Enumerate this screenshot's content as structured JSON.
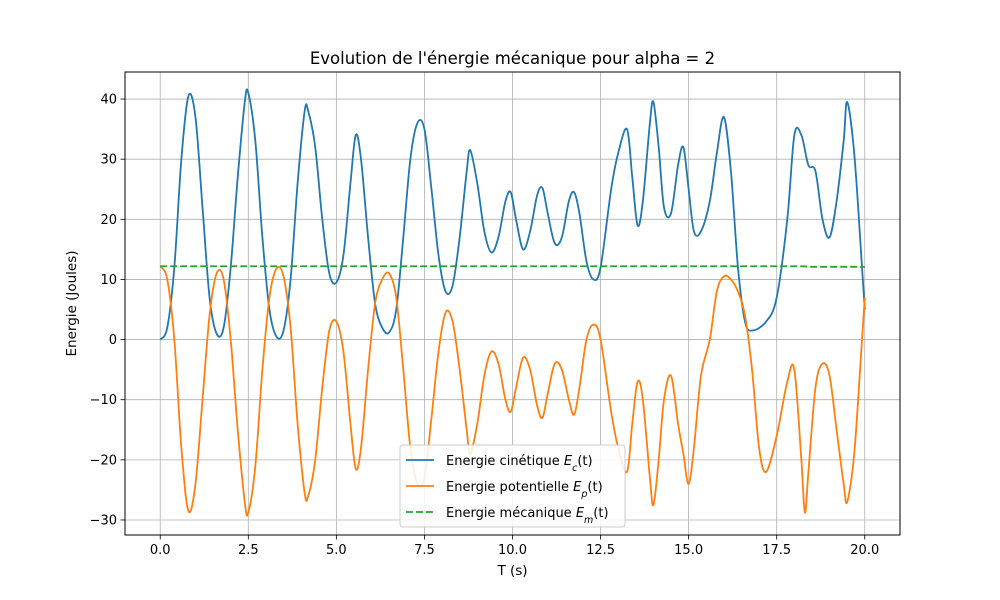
{
  "chart_data": {
    "type": "line",
    "title": "Evolution de l'énergie mécanique pour alpha = 2",
    "xlabel": "T (s)",
    "ylabel": "Energie (Joules)",
    "xlim": [
      -1.0,
      21.0
    ],
    "ylim": [
      -32.5,
      44.5
    ],
    "x_ticks": [
      0.0,
      2.5,
      5.0,
      7.5,
      10.0,
      12.5,
      15.0,
      17.5,
      20.0
    ],
    "x_tick_labels": [
      "0.0",
      "2.5",
      "5.0",
      "7.5",
      "10.0",
      "12.5",
      "15.0",
      "17.5",
      "20.0"
    ],
    "y_ticks": [
      -30,
      -20,
      -10,
      0,
      10,
      20,
      30,
      40
    ],
    "y_tick_labels": [
      "−30",
      "−20",
      "−10",
      "0",
      "10",
      "20",
      "30",
      "40"
    ],
    "grid": true,
    "legend_position": "bottom-center",
    "series": [
      {
        "name": "Energie cinétique",
        "legend_base": "Energie cinétique ",
        "legend_sym": "E",
        "legend_sub": "c",
        "legend_arg": "(t)",
        "color": "#1f77b4",
        "style": "solid",
        "points": [
          [
            0,
            0
          ],
          [
            0.2,
            2
          ],
          [
            0.4,
            12
          ],
          [
            0.6,
            30
          ],
          [
            0.8,
            40.5
          ],
          [
            1.0,
            37
          ],
          [
            1.2,
            22
          ],
          [
            1.4,
            7
          ],
          [
            1.6,
            1
          ],
          [
            1.8,
            2
          ],
          [
            2.0,
            12
          ],
          [
            2.2,
            27
          ],
          [
            2.4,
            39.5
          ],
          [
            2.5,
            41
          ],
          [
            2.7,
            33
          ],
          [
            2.9,
            17
          ],
          [
            3.1,
            5
          ],
          [
            3.3,
            0.5
          ],
          [
            3.5,
            1.5
          ],
          [
            3.7,
            10
          ],
          [
            3.9,
            26
          ],
          [
            4.1,
            38
          ],
          [
            4.2,
            38
          ],
          [
            4.4,
            32
          ],
          [
            4.6,
            20
          ],
          [
            4.8,
            11
          ],
          [
            5.0,
            9.5
          ],
          [
            5.2,
            14
          ],
          [
            5.4,
            26
          ],
          [
            5.55,
            34
          ],
          [
            5.7,
            30
          ],
          [
            5.9,
            17
          ],
          [
            6.1,
            6
          ],
          [
            6.3,
            2
          ],
          [
            6.5,
            1.2
          ],
          [
            6.7,
            5
          ],
          [
            6.9,
            17
          ],
          [
            7.1,
            30
          ],
          [
            7.3,
            36
          ],
          [
            7.5,
            35
          ],
          [
            7.7,
            25
          ],
          [
            7.9,
            14
          ],
          [
            8.1,
            8
          ],
          [
            8.3,
            9
          ],
          [
            8.5,
            17
          ],
          [
            8.7,
            28
          ],
          [
            8.8,
            31.5
          ],
          [
            9.0,
            26
          ],
          [
            9.2,
            18
          ],
          [
            9.4,
            14.5
          ],
          [
            9.6,
            17
          ],
          [
            9.8,
            23
          ],
          [
            9.95,
            24.5
          ],
          [
            10.1,
            20
          ],
          [
            10.3,
            15
          ],
          [
            10.5,
            18
          ],
          [
            10.7,
            24
          ],
          [
            10.85,
            25.2
          ],
          [
            11.0,
            21
          ],
          [
            11.2,
            16
          ],
          [
            11.4,
            17
          ],
          [
            11.6,
            23
          ],
          [
            11.75,
            24.5
          ],
          [
            11.9,
            21
          ],
          [
            12.1,
            13
          ],
          [
            12.3,
            10
          ],
          [
            12.5,
            12
          ],
          [
            12.8,
            25
          ],
          [
            13.0,
            31
          ],
          [
            13.25,
            35
          ],
          [
            13.4,
            27
          ],
          [
            13.55,
            19
          ],
          [
            13.7,
            23
          ],
          [
            13.9,
            36
          ],
          [
            14.0,
            39.5
          ],
          [
            14.15,
            32
          ],
          [
            14.3,
            22
          ],
          [
            14.5,
            21
          ],
          [
            14.7,
            29
          ],
          [
            14.85,
            32
          ],
          [
            15.0,
            25
          ],
          [
            15.15,
            18
          ],
          [
            15.35,
            18
          ],
          [
            15.6,
            23
          ],
          [
            15.8,
            31
          ],
          [
            16.0,
            37
          ],
          [
            16.2,
            28
          ],
          [
            16.4,
            12
          ],
          [
            16.6,
            3
          ],
          [
            16.8,
            1.5
          ],
          [
            17.2,
            3
          ],
          [
            17.5,
            7
          ],
          [
            17.8,
            20
          ],
          [
            18.0,
            34
          ],
          [
            18.2,
            34
          ],
          [
            18.4,
            29
          ],
          [
            18.6,
            28
          ],
          [
            18.8,
            20
          ],
          [
            19.0,
            17
          ],
          [
            19.2,
            23
          ],
          [
            19.4,
            33
          ],
          [
            19.5,
            39.5
          ],
          [
            19.7,
            31
          ],
          [
            19.9,
            14
          ],
          [
            20.0,
            5
          ]
        ]
      },
      {
        "name": "Energie potentielle",
        "legend_base": "Energie potentielle ",
        "legend_sym": "E",
        "legend_sub": "p",
        "legend_arg": "(t)",
        "color": "#ff7f0e",
        "style": "solid",
        "points": [
          [
            0,
            12.2
          ],
          [
            0.2,
            10
          ],
          [
            0.4,
            0
          ],
          [
            0.6,
            -18
          ],
          [
            0.8,
            -28.5
          ],
          [
            1.0,
            -24
          ],
          [
            1.2,
            -10
          ],
          [
            1.4,
            4
          ],
          [
            1.6,
            11
          ],
          [
            1.8,
            10
          ],
          [
            2.0,
            0
          ],
          [
            2.2,
            -15
          ],
          [
            2.4,
            -27
          ],
          [
            2.5,
            -28.8
          ],
          [
            2.7,
            -21
          ],
          [
            2.9,
            -5
          ],
          [
            3.1,
            7
          ],
          [
            3.3,
            11.8
          ],
          [
            3.5,
            10.5
          ],
          [
            3.7,
            2
          ],
          [
            3.9,
            -14
          ],
          [
            4.1,
            -25.5
          ],
          [
            4.2,
            -26
          ],
          [
            4.4,
            -20
          ],
          [
            4.6,
            -8
          ],
          [
            4.8,
            1.5
          ],
          [
            5.0,
            3
          ],
          [
            5.2,
            -2
          ],
          [
            5.4,
            -14
          ],
          [
            5.55,
            -21.5
          ],
          [
            5.7,
            -18
          ],
          [
            5.9,
            -5
          ],
          [
            6.1,
            6
          ],
          [
            6.3,
            10
          ],
          [
            6.5,
            11
          ],
          [
            6.7,
            7
          ],
          [
            6.9,
            -5
          ],
          [
            7.1,
            -18
          ],
          [
            7.3,
            -24
          ],
          [
            7.5,
            -23
          ],
          [
            7.7,
            -13
          ],
          [
            7.9,
            -2
          ],
          [
            8.1,
            4.5
          ],
          [
            8.3,
            3
          ],
          [
            8.5,
            -5
          ],
          [
            8.7,
            -15
          ],
          [
            8.8,
            -19
          ],
          [
            9.0,
            -14
          ],
          [
            9.2,
            -6
          ],
          [
            9.4,
            -2
          ],
          [
            9.6,
            -4
          ],
          [
            9.8,
            -10
          ],
          [
            9.95,
            -12
          ],
          [
            10.1,
            -8
          ],
          [
            10.3,
            -3
          ],
          [
            10.5,
            -5
          ],
          [
            10.7,
            -11
          ],
          [
            10.85,
            -13
          ],
          [
            11.0,
            -9
          ],
          [
            11.2,
            -4
          ],
          [
            11.4,
            -5
          ],
          [
            11.6,
            -10
          ],
          [
            11.75,
            -12.5
          ],
          [
            11.9,
            -8
          ],
          [
            12.1,
            0
          ],
          [
            12.3,
            2.5
          ],
          [
            12.5,
            0
          ],
          [
            12.8,
            -12
          ],
          [
            13.0,
            -18
          ],
          [
            13.25,
            -22
          ],
          [
            13.4,
            -14
          ],
          [
            13.55,
            -7
          ],
          [
            13.7,
            -10
          ],
          [
            13.9,
            -23
          ],
          [
            14.0,
            -27.5
          ],
          [
            14.15,
            -20
          ],
          [
            14.3,
            -10
          ],
          [
            14.5,
            -6
          ],
          [
            14.7,
            -14
          ],
          [
            14.85,
            -19
          ],
          [
            15.0,
            -24
          ],
          [
            15.15,
            -18
          ],
          [
            15.35,
            -6
          ],
          [
            15.6,
            0
          ],
          [
            15.8,
            8
          ],
          [
            16.0,
            10.5
          ],
          [
            16.2,
            10
          ],
          [
            16.4,
            8
          ],
          [
            16.6,
            4
          ],
          [
            16.8,
            -5
          ],
          [
            17.0,
            -18
          ],
          [
            17.2,
            -22
          ],
          [
            17.5,
            -16
          ],
          [
            17.8,
            -7
          ],
          [
            18.0,
            -5
          ],
          [
            18.2,
            -20
          ],
          [
            18.3,
            -28.8
          ],
          [
            18.4,
            -22
          ],
          [
            18.6,
            -8
          ],
          [
            18.8,
            -4
          ],
          [
            19.0,
            -6
          ],
          [
            19.2,
            -15
          ],
          [
            19.4,
            -24
          ],
          [
            19.5,
            -27
          ],
          [
            19.7,
            -19
          ],
          [
            19.9,
            -2
          ],
          [
            20.0,
            7
          ]
        ]
      },
      {
        "name": "Energie mécanique",
        "legend_base": "Energie mécanique ",
        "legend_sym": "E",
        "legend_sub": "m",
        "legend_arg": "(t)",
        "color": "#2ca02c",
        "style": "dashed",
        "points": [
          [
            0,
            12.2
          ],
          [
            5,
            12.2
          ],
          [
            10,
            12.2
          ],
          [
            15,
            12.2
          ],
          [
            17.5,
            12.2
          ],
          [
            18.2,
            12.2
          ],
          [
            18.5,
            12.1
          ],
          [
            20,
            12.1
          ]
        ]
      }
    ]
  }
}
